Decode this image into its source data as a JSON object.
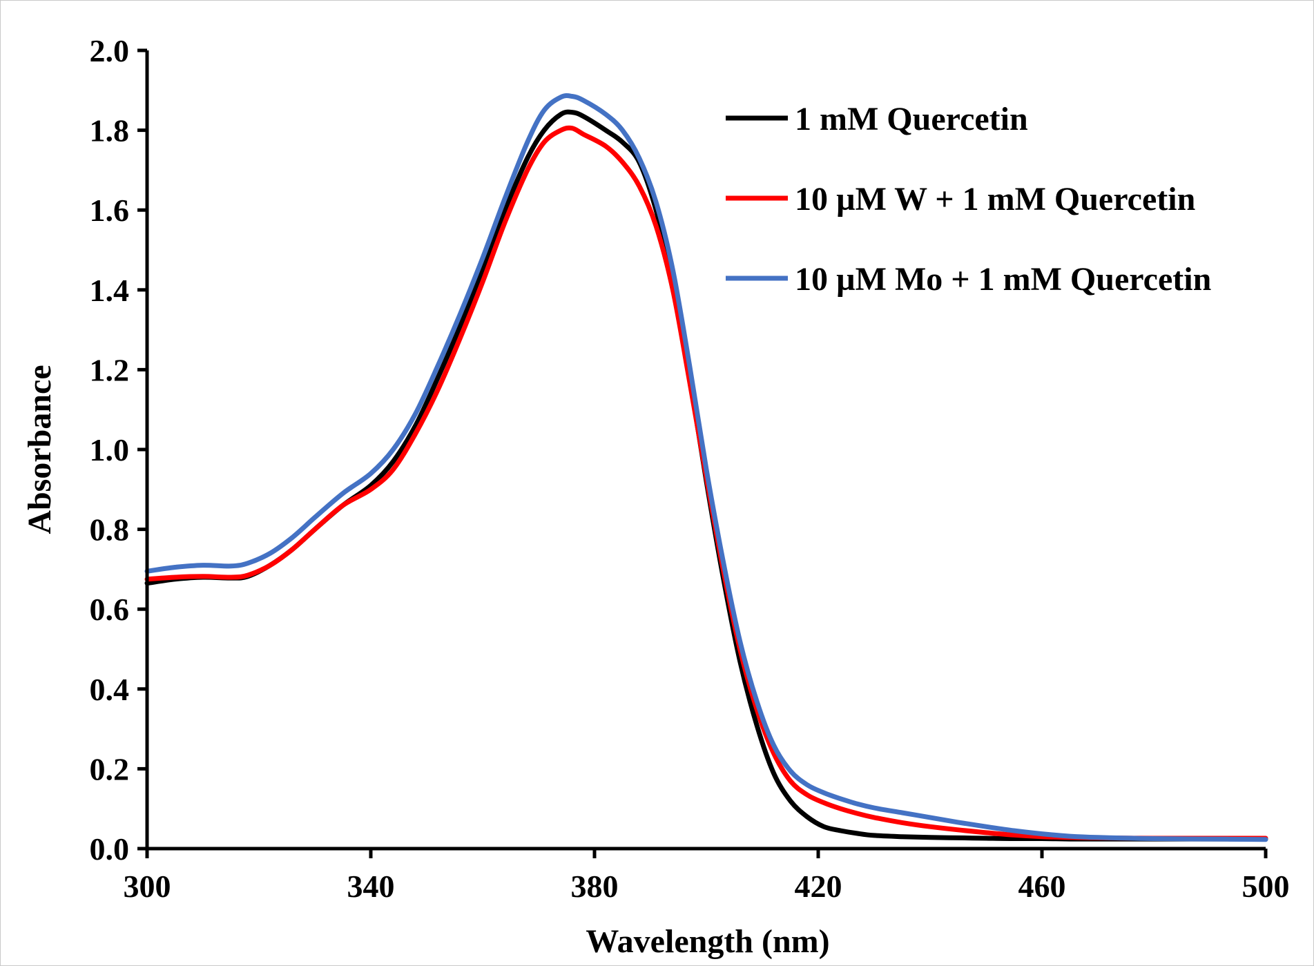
{
  "chart_data": {
    "type": "line",
    "title": "",
    "xlabel": "Wavelength (nm)",
    "ylabel": "Absorbance",
    "xlim": [
      300,
      500
    ],
    "ylim": [
      0.0,
      2.0
    ],
    "x_ticks": [
      "300",
      "340",
      "380",
      "420",
      "460",
      "500"
    ],
    "y_ticks": [
      "0.0",
      "0.2",
      "0.4",
      "0.6",
      "0.8",
      "1.0",
      "1.2",
      "1.4",
      "1.6",
      "1.8",
      "2.0"
    ],
    "grid": false,
    "legend_position": "top-right",
    "x": [
      300,
      305,
      310,
      315,
      318,
      322,
      326,
      330,
      335,
      340,
      344,
      348,
      352,
      356,
      360,
      364,
      368,
      371,
      374,
      376,
      378,
      382,
      385,
      388,
      391,
      394,
      397,
      400,
      403,
      406,
      409,
      412,
      415,
      418,
      421,
      424,
      427,
      430,
      435,
      440,
      445,
      450,
      455,
      460,
      465,
      470,
      480,
      490,
      500
    ],
    "series": [
      {
        "name": "1 mM Quercetin",
        "color": "#000000",
        "values": [
          0.665,
          0.675,
          0.68,
          0.678,
          0.682,
          0.71,
          0.75,
          0.8,
          0.86,
          0.91,
          0.97,
          1.06,
          1.18,
          1.31,
          1.45,
          1.6,
          1.73,
          1.8,
          1.84,
          1.845,
          1.835,
          1.8,
          1.77,
          1.72,
          1.6,
          1.42,
          1.18,
          0.92,
          0.68,
          0.47,
          0.31,
          0.19,
          0.12,
          0.08,
          0.055,
          0.045,
          0.038,
          0.033,
          0.03,
          0.028,
          0.027,
          0.026,
          0.025,
          0.025,
          0.024,
          0.024,
          0.024,
          0.024,
          0.024
        ]
      },
      {
        "name": "10 µM W + 1 mM Quercetin",
        "color": "#ff0000",
        "values": [
          0.675,
          0.68,
          0.682,
          0.68,
          0.685,
          0.71,
          0.75,
          0.8,
          0.86,
          0.9,
          0.95,
          1.04,
          1.15,
          1.28,
          1.42,
          1.57,
          1.7,
          1.77,
          1.8,
          1.805,
          1.79,
          1.76,
          1.72,
          1.66,
          1.56,
          1.4,
          1.17,
          0.93,
          0.7,
          0.5,
          0.35,
          0.24,
          0.17,
          0.135,
          0.115,
          0.1,
          0.088,
          0.078,
          0.065,
          0.055,
          0.047,
          0.04,
          0.034,
          0.03,
          0.028,
          0.027,
          0.026,
          0.026,
          0.026
        ]
      },
      {
        "name": "10 µM Mo + 1 mM Quercetin",
        "color": "#4472c4",
        "values": [
          0.695,
          0.705,
          0.71,
          0.708,
          0.715,
          0.74,
          0.78,
          0.83,
          0.89,
          0.94,
          1.0,
          1.09,
          1.21,
          1.34,
          1.48,
          1.63,
          1.77,
          1.85,
          1.883,
          1.885,
          1.875,
          1.84,
          1.8,
          1.73,
          1.62,
          1.45,
          1.21,
          0.95,
          0.72,
          0.52,
          0.37,
          0.26,
          0.195,
          0.16,
          0.14,
          0.125,
          0.112,
          0.102,
          0.09,
          0.078,
          0.066,
          0.055,
          0.045,
          0.037,
          0.031,
          0.028,
          0.025,
          0.024,
          0.023
        ]
      }
    ]
  }
}
